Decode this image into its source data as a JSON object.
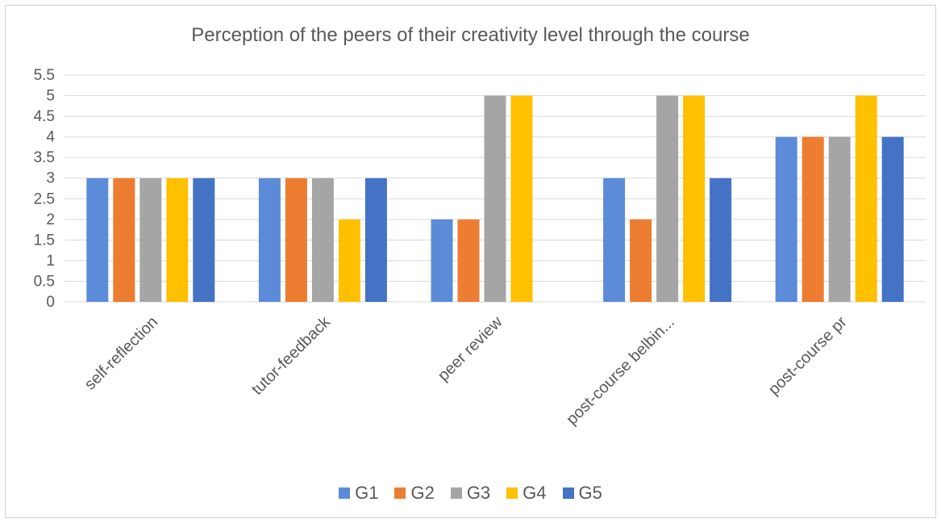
{
  "chart_data": {
    "type": "bar",
    "title": "Perception of the peers of their creativity level through the course",
    "xlabel": "",
    "ylabel": "",
    "ylim": [
      0,
      5.5
    ],
    "yticks": [
      "0",
      "0.5",
      "1",
      "1.5",
      "2",
      "2.5",
      "3",
      "3.5",
      "4",
      "4.5",
      "5",
      "5.5"
    ],
    "grid": true,
    "legend_position": "bottom",
    "categories": [
      "self-reflection",
      "tutor-feedback",
      "peer review",
      "post-course belbin...",
      "post-course pr"
    ],
    "series": [
      {
        "name": "G1",
        "color": "#5b8bd9",
        "values": [
          3,
          3,
          2,
          3,
          4
        ]
      },
      {
        "name": "G2",
        "color": "#ed7d31",
        "values": [
          3,
          3,
          2,
          2,
          4
        ]
      },
      {
        "name": "G3",
        "color": "#a5a5a5",
        "values": [
          3,
          3,
          5,
          5,
          4
        ]
      },
      {
        "name": "G4",
        "color": "#ffc000",
        "values": [
          3,
          2,
          5,
          5,
          5
        ]
      },
      {
        "name": "G5",
        "color": "#4472c4",
        "values": [
          3,
          3,
          0,
          3,
          4
        ]
      }
    ]
  }
}
